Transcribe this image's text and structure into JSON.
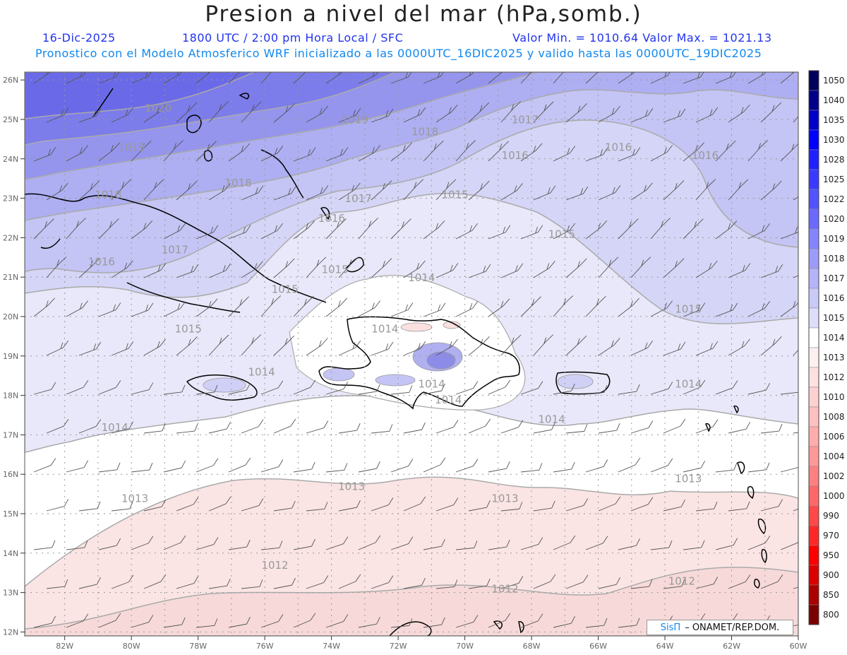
{
  "title": "Presion a nivel del mar (hPa,somb.)",
  "date": "16-Dic-2025",
  "time": "1800 UTC / 2:00 pm Hora Local / SFC",
  "min_max": "Valor Min. = 1010.64  Valor Max. = 1021.13",
  "forecast": "Pronostico con el Modelo Atmosferico WRF inicializado a las 0000UTC_16DIC2025 y valido hasta las  0000UTC_19DIC2025",
  "credit": {
    "brand": "SisΠ",
    "org": "– ONAMET/REP.DOM."
  },
  "lat_labels": [
    "26N",
    "25N",
    "24N",
    "23N",
    "22N",
    "21N",
    "20N",
    "19N",
    "18N",
    "17N",
    "16N",
    "15N",
    "14N",
    "13N",
    "12N"
  ],
  "lon_labels": [
    "82W",
    "80W",
    "78W",
    "76W",
    "74W",
    "72W",
    "70W",
    "68W",
    "66W",
    "64W",
    "62W",
    "60W"
  ],
  "colorbar": {
    "labels": [
      "1050",
      "1040",
      "1035",
      "1030",
      "1028",
      "1025",
      "1022",
      "1020",
      "1019",
      "1018",
      "1017",
      "1016",
      "1015",
      "1014",
      "1013",
      "1012",
      "1010",
      "1008",
      "1006",
      "1004",
      "1002",
      "1000",
      "990",
      "970",
      "950",
      "900",
      "850",
      "800"
    ],
    "colors": [
      "#00005a",
      "#00008b",
      "#0000c8",
      "#0000ff",
      "#2020ff",
      "#3a3aff",
      "#5252ff",
      "#6a6aff",
      "#8484ff",
      "#9c9cf8",
      "#b4b4f8",
      "#cacaf8",
      "#dedefa",
      "#ffffff",
      "#fff0f0",
      "#ffe0e0",
      "#ffd0d0",
      "#ffc0c0",
      "#ffacac",
      "#ff9898",
      "#ff8080",
      "#ff6868",
      "#ff4848",
      "#ff2828",
      "#ff0000",
      "#dd0000",
      "#aa0000",
      "#7a0000"
    ]
  },
  "contour_labels": [
    {
      "text": "1020",
      "lat": 25.2,
      "lon": -79.6
    },
    {
      "text": "1019",
      "lat": 24.2,
      "lon": -80.4
    },
    {
      "text": "1019",
      "lat": 24.9,
      "lon": -73.7
    },
    {
      "text": "1018",
      "lat": 23.0,
      "lon": -81.1
    },
    {
      "text": "1018",
      "lat": 23.3,
      "lon": -77.2
    },
    {
      "text": "1018",
      "lat": 24.6,
      "lon": -71.6
    },
    {
      "text": "1017",
      "lat": 24.9,
      "lon": -68.6
    },
    {
      "text": "1017",
      "lat": 22.9,
      "lon": -73.6
    },
    {
      "text": "1017",
      "lat": 21.6,
      "lon": -79.1
    },
    {
      "text": "1016",
      "lat": 24.0,
      "lon": -68.9
    },
    {
      "text": "1016",
      "lat": 24.2,
      "lon": -65.8
    },
    {
      "text": "1016",
      "lat": 24.0,
      "lon": -63.2
    },
    {
      "text": "1016",
      "lat": 21.3,
      "lon": -81.3
    },
    {
      "text": "1016",
      "lat": 22.4,
      "lon": -74.4
    },
    {
      "text": "1015",
      "lat": 23.0,
      "lon": -70.7
    },
    {
      "text": "1015",
      "lat": 22.0,
      "lon": -67.5
    },
    {
      "text": "1015",
      "lat": 21.1,
      "lon": -74.3
    },
    {
      "text": "1015",
      "lat": 20.6,
      "lon": -75.8
    },
    {
      "text": "1015",
      "lat": 19.6,
      "lon": -78.7
    },
    {
      "text": "1015",
      "lat": 20.1,
      "lon": -63.7
    },
    {
      "text": "1014",
      "lat": 20.9,
      "lon": -71.7
    },
    {
      "text": "1014",
      "lat": 19.6,
      "lon": -72.8
    },
    {
      "text": "1014",
      "lat": 18.5,
      "lon": -76.5
    },
    {
      "text": "1014",
      "lat": 18.2,
      "lon": -71.4
    },
    {
      "text": "1014",
      "lat": 17.8,
      "lon": -70.9
    },
    {
      "text": "1014",
      "lat": 18.2,
      "lon": -63.7
    },
    {
      "text": "1014",
      "lat": 17.3,
      "lon": -67.8
    },
    {
      "text": "1014",
      "lat": 17.1,
      "lon": -80.9
    },
    {
      "text": "1013",
      "lat": 15.3,
      "lon": -80.3
    },
    {
      "text": "1013",
      "lat": 15.6,
      "lon": -73.8
    },
    {
      "text": "1013",
      "lat": 15.3,
      "lon": -69.2
    },
    {
      "text": "1013",
      "lat": 15.8,
      "lon": -63.7
    },
    {
      "text": "1012",
      "lat": 13.6,
      "lon": -76.1
    },
    {
      "text": "1012",
      "lat": 13.0,
      "lon": -69.2
    },
    {
      "text": "1012",
      "lat": 13.2,
      "lon": -63.9
    }
  ]
}
